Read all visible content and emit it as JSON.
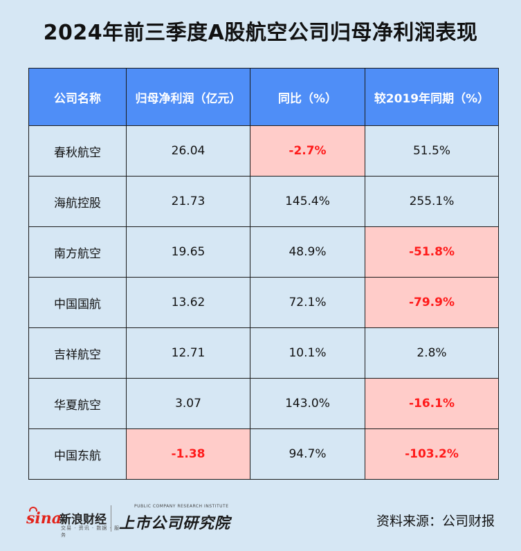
{
  "title": "2024年前三季度A股航空公司归母净利润表现",
  "chart_data": {
    "type": "table",
    "columns": [
      "公司名称",
      "归母净利润（亿元）",
      "同比（%）",
      "较2019年同期（%）"
    ],
    "rows": [
      {
        "name": "春秋航空",
        "profit": "26.04",
        "yoy": "-2.7%",
        "vs2019": "51.5%",
        "hl": [
          false,
          true,
          false
        ]
      },
      {
        "name": "海航控股",
        "profit": "21.73",
        "yoy": "145.4%",
        "vs2019": "255.1%",
        "hl": [
          false,
          false,
          false
        ]
      },
      {
        "name": "南方航空",
        "profit": "19.65",
        "yoy": "48.9%",
        "vs2019": "-51.8%",
        "hl": [
          false,
          false,
          true
        ]
      },
      {
        "name": "中国国航",
        "profit": "13.62",
        "yoy": "72.1%",
        "vs2019": "-79.9%",
        "hl": [
          false,
          false,
          true
        ]
      },
      {
        "name": "吉祥航空",
        "profit": "12.71",
        "yoy": "10.1%",
        "vs2019": "2.8%",
        "hl": [
          false,
          false,
          false
        ]
      },
      {
        "name": "华夏航空",
        "profit": "3.07",
        "yoy": "143.0%",
        "vs2019": "-16.1%",
        "hl": [
          false,
          false,
          true
        ]
      },
      {
        "name": "中国东航",
        "profit": "-1.38",
        "yoy": "94.7%",
        "vs2019": "-103.2%",
        "hl": [
          true,
          false,
          true
        ]
      }
    ]
  },
  "colors": {
    "header_bg": "#4f8ef7",
    "highlight_bg": "#ffccc9",
    "highlight_text": "#ff1a1a",
    "page_bg": "#d6e7f4"
  },
  "footer": {
    "sina_mark": "sina",
    "sina_name": "新浪财经",
    "sina_tagline": "交易 · 资讯 · 数据 · 服务",
    "institute_en": "PUBLIC COMPANY RESEARCH INSTITUTE",
    "institute_cn": "上市公司研究院",
    "source": "资料来源：公司财报"
  }
}
